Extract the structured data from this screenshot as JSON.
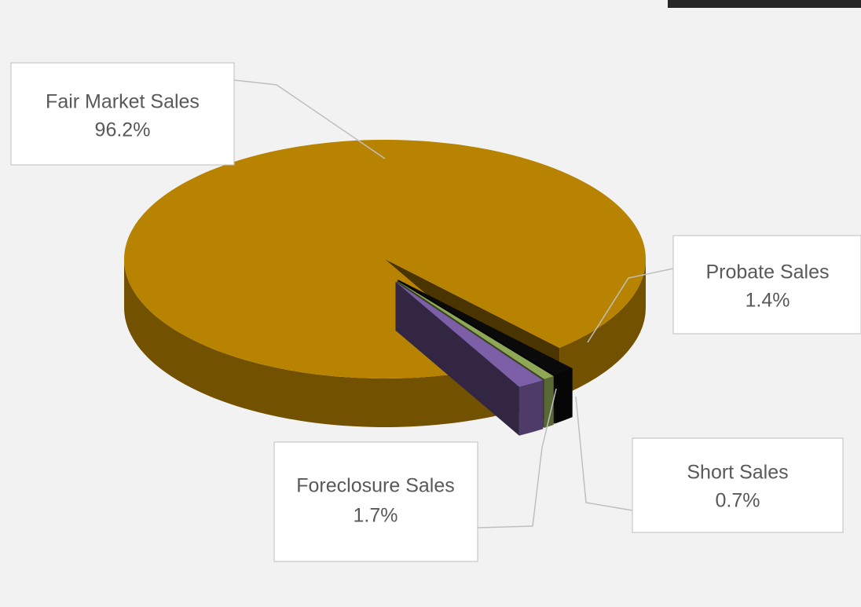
{
  "chart_data": {
    "type": "pie",
    "categories": [
      "Fair Market Sales",
      "Probate Sales",
      "Short Sales",
      "Foreclosure Sales"
    ],
    "values": [
      96.2,
      1.4,
      0.7,
      1.7
    ],
    "value_labels": [
      "96.2%",
      "1.4%",
      "0.7%",
      "1.7%"
    ],
    "colors": [
      "#b88300",
      "#0a0a0a",
      "#8fa855",
      "#7d5fa8"
    ]
  }
}
